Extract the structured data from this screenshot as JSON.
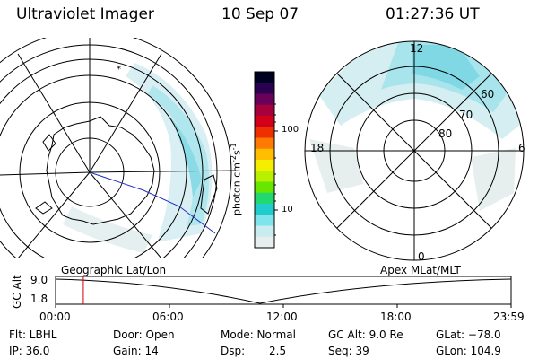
{
  "header": {
    "instrument": "Ultraviolet Imager",
    "date": "10 Sep 07",
    "time": "01:27:36 UT"
  },
  "left_panel": {
    "label": "Geographic Lat/Lon"
  },
  "right_panel": {
    "label": "Apex MLat/MLT",
    "mlt_labels": {
      "top": "12",
      "left": "18",
      "right": "6",
      "bottom": "0"
    },
    "lat_labels": [
      "60",
      "70",
      "80"
    ]
  },
  "colorbar": {
    "unit_label": "photon cm",
    "unit_exp1": "-2",
    "unit_mid": "s",
    "unit_exp2": "-1",
    "ticks": [
      "100",
      "10"
    ],
    "colors": [
      "#000020",
      "#2a0050",
      "#6a005a",
      "#a8003a",
      "#d20018",
      "#ee3000",
      "#ff7a00",
      "#ffbe00",
      "#f4ee00",
      "#b8f000",
      "#66e600",
      "#22d870",
      "#20cccc",
      "#80e4ec",
      "#c8ecf0",
      "#e6eeee"
    ]
  },
  "altitude_plot": {
    "ylabel": "GC Alt",
    "yticks": [
      "9.0",
      "1.8"
    ],
    "xticks": [
      "00:00",
      "06:00",
      "12:00",
      "18:00",
      "23:59"
    ],
    "marker_time": "01:27:36"
  },
  "stats": {
    "filter": "Flt: LBHL",
    "ip": "IP: 36.0",
    "door": "Door: Open",
    "gain": "Gain: 14",
    "mode": "Mode: Normal",
    "dsp_label": "Dsp:",
    "dsp_value": "2.5",
    "gcalt": "GC Alt: 9.0 Re",
    "seq": "Seq: 39",
    "glat": "GLat: −78.0",
    "glon": "GLon: 104.9"
  }
}
